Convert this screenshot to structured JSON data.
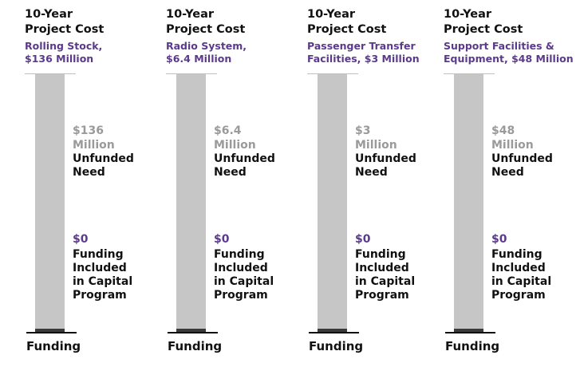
{
  "chart_data": [
    {
      "type": "bar",
      "title_line1": "10-Year",
      "title_line2": "Project Cost",
      "subtitle": [
        "Rolling Stock,",
        "$136 Million"
      ],
      "xlabel": "Funding",
      "unfunded": {
        "amount": "$136",
        "unit": "Million",
        "label": [
          "Unfunded",
          "Need"
        ],
        "value_millions": 136
      },
      "funded": {
        "amount": "$0",
        "label": [
          "Funding",
          "Included",
          "in Capital",
          "Program"
        ],
        "value_millions": 0
      }
    },
    {
      "type": "bar",
      "title_line1": "10-Year",
      "title_line2": "Project Cost",
      "subtitle": [
        "Radio System,",
        "$6.4 Million"
      ],
      "xlabel": "Funding",
      "unfunded": {
        "amount": "$6.4",
        "unit": "Million",
        "label": [
          "Unfunded",
          "Need"
        ],
        "value_millions": 6.4
      },
      "funded": {
        "amount": "$0",
        "label": [
          "Funding",
          "Included",
          "in Capital",
          "Program"
        ],
        "value_millions": 0
      }
    },
    {
      "type": "bar",
      "title_line1": "10-Year",
      "title_line2": "Project Cost",
      "subtitle": [
        "Passenger Transfer",
        "Facilities, $3 Million"
      ],
      "xlabel": "Funding",
      "unfunded": {
        "amount": "$3",
        "unit": "Million",
        "label": [
          "Unfunded",
          "Need"
        ],
        "value_millions": 3
      },
      "funded": {
        "amount": "$0",
        "label": [
          "Funding",
          "Included",
          "in Capital",
          "Program"
        ],
        "value_millions": 0
      }
    },
    {
      "type": "bar",
      "title_line1": "10-Year",
      "title_line2": "Project Cost",
      "subtitle": [
        "Support Facilities &",
        "Equipment, $48 Million"
      ],
      "xlabel": "Funding",
      "unfunded": {
        "amount": "$48",
        "unit": "Million",
        "label": [
          "Unfunded",
          "Need"
        ],
        "value_millions": 48
      },
      "funded": {
        "amount": "$0",
        "label": [
          "Funding",
          "Included",
          "in Capital",
          "Program"
        ],
        "value_millions": 0
      }
    }
  ],
  "colors": {
    "unfunded_bar": "#c6c6c6",
    "funded_bar": "#3a3a3a",
    "accent_purple": "#5b3a8c",
    "muted_gray": "#9a9a9a"
  }
}
